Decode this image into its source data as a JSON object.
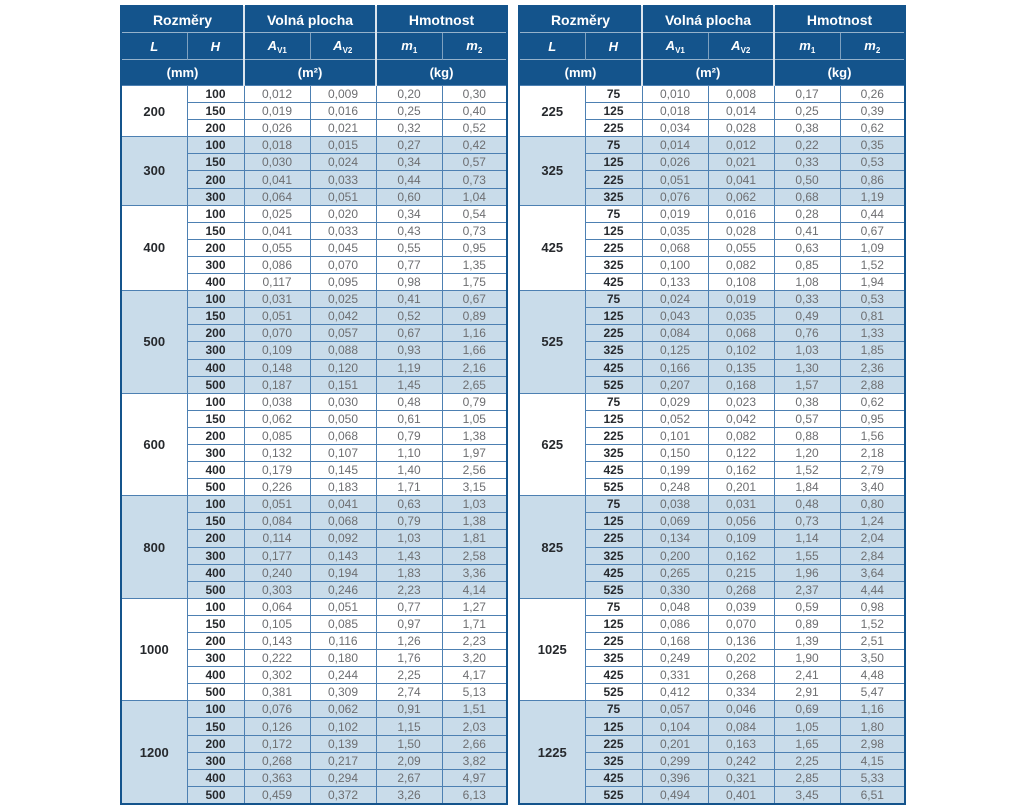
{
  "page": {
    "background": "#ffffff"
  },
  "colors": {
    "header_bg": "#14548c",
    "header_text": "#ffffff",
    "band_blue": "#c9dcea",
    "band_white": "#ffffff",
    "grid_line": "#4d80b2",
    "outer_border": "#14548c",
    "value_text": "#6d6e71",
    "dimension_text": "#26292d"
  },
  "headers": {
    "dimensions": "Rozměry",
    "free_area": "Volná plocha",
    "weight": "Hmotnost",
    "col_l": "L",
    "col_h": "H",
    "symbol_a": "A",
    "sub_v1": "V1",
    "sub_v2": "V2",
    "symbol_m": "m",
    "sub_m1": "1",
    "sub_m2": "2",
    "unit_mm": "(mm)",
    "unit_m2": "(m²)",
    "unit_kg": "(kg)"
  },
  "tables": [
    {
      "name": "left",
      "groups": [
        {
          "L": "200",
          "rows": [
            [
              "100",
              "0,012",
              "0,009",
              "0,20",
              "0,30"
            ],
            [
              "150",
              "0,019",
              "0,016",
              "0,25",
              "0,40"
            ],
            [
              "200",
              "0,026",
              "0,021",
              "0,32",
              "0,52"
            ]
          ]
        },
        {
          "L": "300",
          "rows": [
            [
              "100",
              "0,018",
              "0,015",
              "0,27",
              "0,42"
            ],
            [
              "150",
              "0,030",
              "0,024",
              "0,34",
              "0,57"
            ],
            [
              "200",
              "0,041",
              "0,033",
              "0,44",
              "0,73"
            ],
            [
              "300",
              "0,064",
              "0,051",
              "0,60",
              "1,04"
            ]
          ]
        },
        {
          "L": "400",
          "rows": [
            [
              "100",
              "0,025",
              "0,020",
              "0,34",
              "0,54"
            ],
            [
              "150",
              "0,041",
              "0,033",
              "0,43",
              "0,73"
            ],
            [
              "200",
              "0,055",
              "0,045",
              "0,55",
              "0,95"
            ],
            [
              "300",
              "0,086",
              "0,070",
              "0,77",
              "1,35"
            ],
            [
              "400",
              "0,117",
              "0,095",
              "0,98",
              "1,75"
            ]
          ]
        },
        {
          "L": "500",
          "rows": [
            [
              "100",
              "0,031",
              "0,025",
              "0,41",
              "0,67"
            ],
            [
              "150",
              "0,051",
              "0,042",
              "0,52",
              "0,89"
            ],
            [
              "200",
              "0,070",
              "0,057",
              "0,67",
              "1,16"
            ],
            [
              "300",
              "0,109",
              "0,088",
              "0,93",
              "1,66"
            ],
            [
              "400",
              "0,148",
              "0,120",
              "1,19",
              "2,16"
            ],
            [
              "500",
              "0,187",
              "0,151",
              "1,45",
              "2,65"
            ]
          ]
        },
        {
          "L": "600",
          "rows": [
            [
              "100",
              "0,038",
              "0,030",
              "0,48",
              "0,79"
            ],
            [
              "150",
              "0,062",
              "0,050",
              "0,61",
              "1,05"
            ],
            [
              "200",
              "0,085",
              "0,068",
              "0,79",
              "1,38"
            ],
            [
              "300",
              "0,132",
              "0,107",
              "1,10",
              "1,97"
            ],
            [
              "400",
              "0,179",
              "0,145",
              "1,40",
              "2,56"
            ],
            [
              "500",
              "0,226",
              "0,183",
              "1,71",
              "3,15"
            ]
          ]
        },
        {
          "L": "800",
          "rows": [
            [
              "100",
              "0,051",
              "0,041",
              "0,63",
              "1,03"
            ],
            [
              "150",
              "0,084",
              "0,068",
              "0,79",
              "1,38"
            ],
            [
              "200",
              "0,114",
              "0,092",
              "1,03",
              "1,81"
            ],
            [
              "300",
              "0,177",
              "0,143",
              "1,43",
              "2,58"
            ],
            [
              "400",
              "0,240",
              "0,194",
              "1,83",
              "3,36"
            ],
            [
              "500",
              "0,303",
              "0,246",
              "2,23",
              "4,14"
            ]
          ]
        },
        {
          "L": "1000",
          "rows": [
            [
              "100",
              "0,064",
              "0,051",
              "0,77",
              "1,27"
            ],
            [
              "150",
              "0,105",
              "0,085",
              "0,97",
              "1,71"
            ],
            [
              "200",
              "0,143",
              "0,116",
              "1,26",
              "2,23"
            ],
            [
              "300",
              "0,222",
              "0,180",
              "1,76",
              "3,20"
            ],
            [
              "400",
              "0,302",
              "0,244",
              "2,25",
              "4,17"
            ],
            [
              "500",
              "0,381",
              "0,309",
              "2,74",
              "5,13"
            ]
          ]
        },
        {
          "L": "1200",
          "rows": [
            [
              "100",
              "0,076",
              "0,062",
              "0,91",
              "1,51"
            ],
            [
              "150",
              "0,126",
              "0,102",
              "1,15",
              "2,03"
            ],
            [
              "200",
              "0,172",
              "0,139",
              "1,50",
              "2,66"
            ],
            [
              "300",
              "0,268",
              "0,217",
              "2,09",
              "3,82"
            ],
            [
              "400",
              "0,363",
              "0,294",
              "2,67",
              "4,97"
            ],
            [
              "500",
              "0,459",
              "0,372",
              "3,26",
              "6,13"
            ]
          ]
        }
      ]
    },
    {
      "name": "right",
      "groups": [
        {
          "L": "225",
          "rows": [
            [
              "75",
              "0,010",
              "0,008",
              "0,17",
              "0,26"
            ],
            [
              "125",
              "0,018",
              "0,014",
              "0,25",
              "0,39"
            ],
            [
              "225",
              "0,034",
              "0,028",
              "0,38",
              "0,62"
            ]
          ]
        },
        {
          "L": "325",
          "rows": [
            [
              "75",
              "0,014",
              "0,012",
              "0,22",
              "0,35"
            ],
            [
              "125",
              "0,026",
              "0,021",
              "0,33",
              "0,53"
            ],
            [
              "225",
              "0,051",
              "0,041",
              "0,50",
              "0,86"
            ],
            [
              "325",
              "0,076",
              "0,062",
              "0,68",
              "1,19"
            ]
          ]
        },
        {
          "L": "425",
          "rows": [
            [
              "75",
              "0,019",
              "0,016",
              "0,28",
              "0,44"
            ],
            [
              "125",
              "0,035",
              "0,028",
              "0,41",
              "0,67"
            ],
            [
              "225",
              "0,068",
              "0,055",
              "0,63",
              "1,09"
            ],
            [
              "325",
              "0,100",
              "0,082",
              "0,85",
              "1,52"
            ],
            [
              "425",
              "0,133",
              "0,108",
              "1,08",
              "1,94"
            ]
          ]
        },
        {
          "L": "525",
          "rows": [
            [
              "75",
              "0,024",
              "0,019",
              "0,33",
              "0,53"
            ],
            [
              "125",
              "0,043",
              "0,035",
              "0,49",
              "0,81"
            ],
            [
              "225",
              "0,084",
              "0,068",
              "0,76",
              "1,33"
            ],
            [
              "325",
              "0,125",
              "0,102",
              "1,03",
              "1,85"
            ],
            [
              "425",
              "0,166",
              "0,135",
              "1,30",
              "2,36"
            ],
            [
              "525",
              "0,207",
              "0,168",
              "1,57",
              "2,88"
            ]
          ]
        },
        {
          "L": "625",
          "rows": [
            [
              "75",
              "0,029",
              "0,023",
              "0,38",
              "0,62"
            ],
            [
              "125",
              "0,052",
              "0,042",
              "0,57",
              "0,95"
            ],
            [
              "225",
              "0,101",
              "0,082",
              "0,88",
              "1,56"
            ],
            [
              "325",
              "0,150",
              "0,122",
              "1,20",
              "2,18"
            ],
            [
              "425",
              "0,199",
              "0,162",
              "1,52",
              "2,79"
            ],
            [
              "525",
              "0,248",
              "0,201",
              "1,84",
              "3,40"
            ]
          ]
        },
        {
          "L": "825",
          "rows": [
            [
              "75",
              "0,038",
              "0,031",
              "0,48",
              "0,80"
            ],
            [
              "125",
              "0,069",
              "0,056",
              "0,73",
              "1,24"
            ],
            [
              "225",
              "0,134",
              "0,109",
              "1,14",
              "2,04"
            ],
            [
              "325",
              "0,200",
              "0,162",
              "1,55",
              "2,84"
            ],
            [
              "425",
              "0,265",
              "0,215",
              "1,96",
              "3,64"
            ],
            [
              "525",
              "0,330",
              "0,268",
              "2,37",
              "4,44"
            ]
          ]
        },
        {
          "L": "1025",
          "rows": [
            [
              "75",
              "0,048",
              "0,039",
              "0,59",
              "0,98"
            ],
            [
              "125",
              "0,086",
              "0,070",
              "0,89",
              "1,52"
            ],
            [
              "225",
              "0,168",
              "0,136",
              "1,39",
              "2,51"
            ],
            [
              "325",
              "0,249",
              "0,202",
              "1,90",
              "3,50"
            ],
            [
              "425",
              "0,331",
              "0,268",
              "2,41",
              "4,48"
            ],
            [
              "525",
              "0,412",
              "0,334",
              "2,91",
              "5,47"
            ]
          ]
        },
        {
          "L": "1225",
          "rows": [
            [
              "75",
              "0,057",
              "0,046",
              "0,69",
              "1,16"
            ],
            [
              "125",
              "0,104",
              "0,084",
              "1,05",
              "1,80"
            ],
            [
              "225",
              "0,201",
              "0,163",
              "1,65",
              "2,98"
            ],
            [
              "325",
              "0,299",
              "0,242",
              "2,25",
              "4,15"
            ],
            [
              "425",
              "0,396",
              "0,321",
              "2,85",
              "5,33"
            ],
            [
              "525",
              "0,494",
              "0,401",
              "3,45",
              "6,51"
            ]
          ]
        }
      ]
    }
  ]
}
